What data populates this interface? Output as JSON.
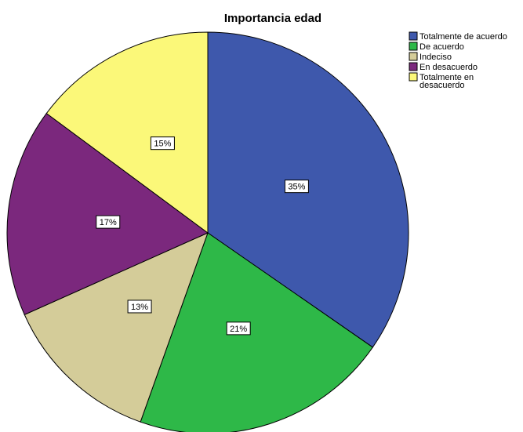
{
  "chart_data": {
    "type": "pie",
    "title": "Importancia  edad",
    "categories": [
      "Totalmente de acuerdo",
      "De acuerdo",
      "Indeciso",
      "En desacuerdo",
      "Totalmente en desacuerdo"
    ],
    "legend_labels": [
      [
        "Totalmente de acuerdo"
      ],
      [
        "De acuerdo"
      ],
      [
        "Indeciso"
      ],
      [
        "En desacuerdo"
      ],
      [
        "Totalmente en",
        "desacuerdo"
      ]
    ],
    "values": [
      35,
      21,
      13,
      17,
      15
    ],
    "data_labels": [
      "35%",
      "21%",
      "13%",
      "17%",
      "15%"
    ],
    "colors": [
      "#3e58ac",
      "#2eb848",
      "#d4cc99",
      "#7b287d",
      "#fbf879"
    ],
    "start_angle": "12 o'clock",
    "direction": "clockwise",
    "legend_position": "top-right"
  }
}
